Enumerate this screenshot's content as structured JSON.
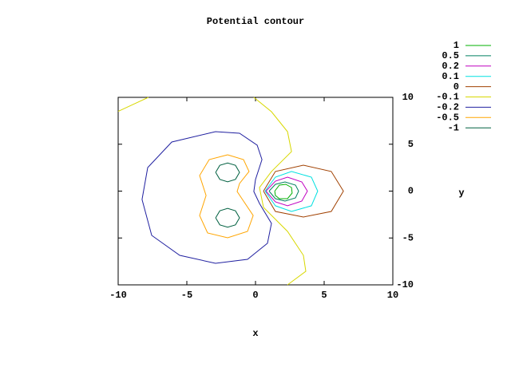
{
  "chart_data": {
    "type": "contour",
    "title": "Potential contour",
    "xlabel": "x",
    "ylabel": "y",
    "xlim": [
      -10,
      10
    ],
    "ylim": [
      -10,
      10
    ],
    "xticks": [
      -10,
      -5,
      0,
      5,
      10
    ],
    "yticks": [
      -10,
      -5,
      0,
      5,
      10
    ],
    "series": [
      {
        "name": "1",
        "color": "#00b000",
        "x": [
          1.4,
          1.74,
          2.21,
          2.62,
          2.67,
          2.33,
          1.74,
          1.45,
          1.4
        ],
        "y": [
          0,
          0.64,
          0.72,
          0.38,
          -0.21,
          -0.81,
          -0.81,
          -0.47,
          0
        ]
      },
      {
        "name": "0.5",
        "color": "#008060",
        "x": [
          0.99,
          1.45,
          2.15,
          2.91,
          3.14,
          2.91,
          2.15,
          1.45,
          0.99
        ],
        "y": [
          0,
          0.72,
          0.98,
          0.64,
          0,
          -0.72,
          -1.06,
          -0.81,
          0
        ]
      },
      {
        "name": "0.2",
        "color": "#c000c0",
        "x": [
          0.76,
          1.45,
          2.33,
          3.37,
          3.78,
          3.37,
          2.33,
          1.45,
          0.76
        ],
        "y": [
          0,
          1.06,
          1.49,
          0.98,
          0,
          -1.06,
          -1.57,
          -1.15,
          0
        ]
      },
      {
        "name": "0.1",
        "color": "#00e0e0",
        "x": [
          0.7,
          1.45,
          2.62,
          4.07,
          4.53,
          4.07,
          2.62,
          1.45,
          0.7
        ],
        "y": [
          0,
          1.49,
          2.09,
          1.49,
          0,
          -1.57,
          -2.17,
          -1.57,
          0
        ]
      },
      {
        "name": "0",
        "color": "#a04000",
        "x": [
          0.58,
          1.45,
          3.49,
          5.52,
          6.4,
          5.52,
          3.49,
          1.45,
          0.58
        ],
        "y": [
          0,
          2.09,
          2.77,
          2.09,
          0,
          -2.17,
          -2.77,
          -2.17,
          0
        ]
      },
      {
        "name": "-0.1",
        "color": "#d8d800",
        "x": [
          -10,
          -7.8,
          null,
          -0.12,
          1.16,
          2.33,
          2.62,
          1.16,
          0.29,
          0.58,
          2.33,
          3.49,
          3.66,
          2.33
        ],
        "y": [
          8.5,
          10,
          null,
          10,
          8.47,
          6.34,
          4.21,
          2.09,
          0.38,
          -1.74,
          -4.3,
          -6.85,
          -8.55,
          -10
        ]
      },
      {
        "name": "-0.2",
        "color": "#2020a0",
        "x": [
          -2.91,
          -1.16,
          0.12,
          0.47,
          0,
          -0.12,
          0.29,
          1.16,
          0.87,
          -0.58,
          -2.91,
          -5.52,
          -7.56,
          -8.26,
          -7.85,
          -6.1,
          -2.91
        ],
        "y": [
          6.34,
          6.17,
          4.89,
          3.36,
          1.23,
          -0.04,
          -1.32,
          -3.45,
          -5.57,
          -7.28,
          -7.7,
          -6.85,
          -4.72,
          -0.89,
          2.51,
          5.23,
          6.34
        ]
      },
      {
        "name": "-0.5",
        "color": "#ffa500",
        "x": [
          -2.03,
          -0.87,
          -0.47,
          -1.16,
          -1.34,
          -0.87,
          -0.17,
          -0.58,
          -2.03,
          -3.49,
          -4.07,
          -3.6,
          -4.07,
          -3.37,
          -2.03
        ],
        "y": [
          3.87,
          3.36,
          2.09,
          0.81,
          -0.04,
          -1.06,
          -2.6,
          -4.3,
          -4.98,
          -4.47,
          -2.6,
          -0.47,
          1.66,
          3.36,
          3.87
        ]
      },
      {
        "name": "-1",
        "color": "#006040",
        "x": [
          -2.9,
          -2.6,
          -2.03,
          -1.46,
          -1.16,
          -1.46,
          -2.03,
          -2.6,
          -2.9,
          null,
          -2.9,
          -2.6,
          -2.03,
          -1.46,
          -1.16,
          -1.46,
          -2.03,
          -2.6,
          -2.9
        ],
        "y": [
          2.0,
          2.75,
          3.0,
          2.75,
          2.0,
          1.25,
          1.0,
          1.25,
          2.0,
          null,
          -2.85,
          -2.1,
          -1.85,
          -2.1,
          -2.85,
          -3.6,
          -3.85,
          -3.6,
          -2.85
        ]
      }
    ]
  }
}
